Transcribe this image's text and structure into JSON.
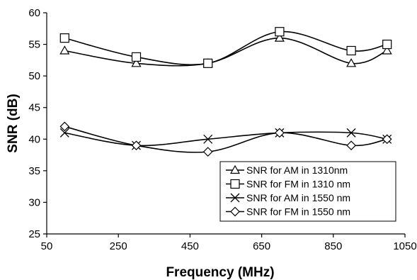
{
  "chart_data": {
    "type": "line",
    "xlabel": "Frequency (MHz)",
    "ylabel": "SNR (dB)",
    "xlim": [
      50,
      1050
    ],
    "ylim": [
      25,
      60
    ],
    "xticks": [
      50,
      250,
      450,
      650,
      850,
      1050
    ],
    "yticks": [
      25,
      30,
      35,
      40,
      45,
      50,
      55,
      60
    ],
    "grid": false,
    "legend_position": "bottom-right",
    "x": [
      100,
      300,
      500,
      700,
      900,
      1000
    ],
    "series": [
      {
        "name": "SNR for AM in 1310nm",
        "marker": "triangle",
        "values": [
          54,
          52,
          52,
          56,
          52,
          54
        ]
      },
      {
        "name": "SNR for FM in 1310 nm",
        "marker": "square",
        "values": [
          56,
          53,
          52,
          57,
          54,
          55
        ]
      },
      {
        "name": "SNR for AM in 1550 nm",
        "marker": "x",
        "values": [
          41,
          39,
          40,
          41,
          41,
          40
        ]
      },
      {
        "name": "SNR for FM in 1550 nm",
        "marker": "diamond",
        "values": [
          42,
          39,
          38,
          41,
          39,
          40
        ]
      }
    ]
  }
}
